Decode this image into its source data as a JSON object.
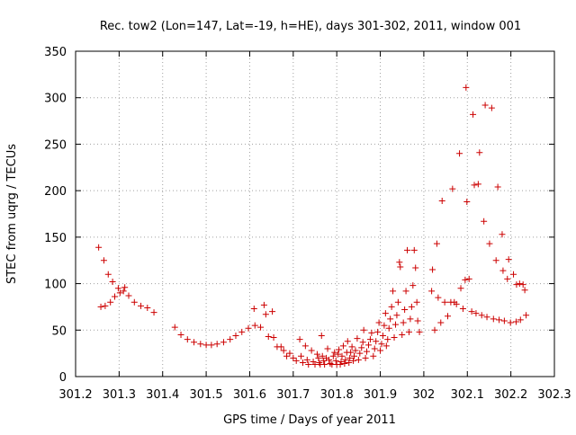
{
  "chart_data": {
    "type": "scatter",
    "title": "Rec. tow2 (Lon=147, Lat=-19, h=HE), days 301-302, 2011, window 001",
    "xlabel": "GPS time / Days of year 2011",
    "ylabel": "STEC from uqrg / TECUs",
    "xlim": [
      301.2,
      302.3
    ],
    "ylim": [
      0,
      350
    ],
    "xticks": [
      301.2,
      301.3,
      301.4,
      301.5,
      301.6,
      301.7,
      301.8,
      301.9,
      302,
      302.1,
      302.2,
      302.3
    ],
    "xtick_labels": [
      "301.2",
      "301.3",
      "301.4",
      "301.5",
      "301.6",
      "301.7",
      "301.8",
      "301.9",
      "302",
      "302.1",
      "302.2",
      "302.3"
    ],
    "yticks": [
      0,
      50,
      100,
      150,
      200,
      250,
      300,
      350
    ],
    "ytick_labels": [
      "0",
      "50",
      "100",
      "150",
      "200",
      "250",
      "300",
      "350"
    ],
    "grid": true,
    "marker": "+",
    "color": "#cc0000",
    "series": [
      {
        "points": [
          [
            301.253,
            139
          ],
          [
            301.258,
            75
          ],
          [
            301.265,
            125
          ],
          [
            301.268,
            76
          ],
          [
            301.275,
            110
          ],
          [
            301.28,
            80
          ],
          [
            301.285,
            102
          ],
          [
            301.29,
            86
          ],
          [
            301.298,
            95
          ],
          [
            301.302,
            90
          ],
          [
            301.31,
            92
          ],
          [
            301.313,
            96
          ],
          [
            301.322,
            87
          ],
          [
            301.335,
            80
          ],
          [
            301.35,
            76
          ],
          [
            301.365,
            74
          ],
          [
            301.38,
            69
          ],
          [
            301.428,
            53
          ],
          [
            301.442,
            45
          ],
          [
            301.457,
            40
          ],
          [
            301.472,
            37
          ],
          [
            301.487,
            35
          ],
          [
            301.5,
            34
          ],
          [
            301.512,
            34
          ],
          [
            301.525,
            35
          ],
          [
            301.54,
            37
          ],
          [
            301.555,
            40
          ],
          [
            301.568,
            44
          ],
          [
            301.582,
            48
          ],
          [
            301.597,
            52
          ],
          [
            301.61,
            73
          ],
          [
            301.612,
            55
          ],
          [
            301.625,
            53
          ],
          [
            301.633,
            77
          ],
          [
            301.637,
            67
          ],
          [
            301.643,
            43
          ],
          [
            301.652,
            70
          ],
          [
            301.655,
            42
          ],
          [
            301.663,
            32
          ],
          [
            301.672,
            32
          ],
          [
            301.678,
            28
          ],
          [
            301.685,
            22
          ],
          [
            301.692,
            25
          ],
          [
            301.7,
            20
          ],
          [
            301.707,
            17
          ],
          [
            301.715,
            40
          ],
          [
            301.718,
            22
          ],
          [
            301.722,
            15
          ],
          [
            301.728,
            33
          ],
          [
            301.732,
            18
          ],
          [
            301.735,
            13
          ],
          [
            301.742,
            28
          ],
          [
            301.746,
            16
          ],
          [
            301.75,
            13
          ],
          [
            301.755,
            24
          ],
          [
            301.758,
            20
          ],
          [
            301.76,
            15
          ],
          [
            301.762,
            13
          ],
          [
            301.765,
            44
          ],
          [
            301.767,
            22
          ],
          [
            301.77,
            17
          ],
          [
            301.772,
            13
          ],
          [
            301.776,
            20
          ],
          [
            301.779,
            30
          ],
          [
            301.782,
            18
          ],
          [
            301.785,
            14
          ],
          [
            301.789,
            13
          ],
          [
            301.792,
            22
          ],
          [
            301.795,
            26
          ],
          [
            301.798,
            17
          ],
          [
            301.8,
            13
          ],
          [
            301.803,
            24
          ],
          [
            301.805,
            29
          ],
          [
            301.808,
            13
          ],
          [
            301.81,
            16
          ],
          [
            301.812,
            22
          ],
          [
            301.815,
            33
          ],
          [
            301.818,
            14
          ],
          [
            301.82,
            18
          ],
          [
            301.823,
            26
          ],
          [
            301.825,
            38
          ],
          [
            301.828,
            15
          ],
          [
            301.83,
            20
          ],
          [
            301.832,
            26
          ],
          [
            301.835,
            32
          ],
          [
            301.838,
            17
          ],
          [
            301.84,
            22
          ],
          [
            301.843,
            28
          ],
          [
            301.847,
            41
          ],
          [
            301.85,
            18
          ],
          [
            301.853,
            25
          ],
          [
            301.857,
            31
          ],
          [
            301.86,
            37
          ],
          [
            301.862,
            50
          ],
          [
            301.866,
            20
          ],
          [
            301.869,
            27
          ],
          [
            301.873,
            34
          ],
          [
            301.877,
            40
          ],
          [
            301.88,
            47
          ],
          [
            301.884,
            22
          ],
          [
            301.887,
            30
          ],
          [
            301.89,
            38
          ],
          [
            301.894,
            48
          ],
          [
            301.897,
            58
          ],
          [
            301.9,
            28
          ],
          [
            301.903,
            35
          ],
          [
            301.906,
            44
          ],
          [
            301.909,
            55
          ],
          [
            301.912,
            68
          ],
          [
            301.914,
            33
          ],
          [
            301.917,
            40
          ],
          [
            301.92,
            52
          ],
          [
            301.923,
            62
          ],
          [
            301.926,
            75
          ],
          [
            301.929,
            92
          ],
          [
            301.932,
            42
          ],
          [
            301.935,
            56
          ],
          [
            301.938,
            66
          ],
          [
            301.941,
            80
          ],
          [
            301.944,
            123
          ],
          [
            301.946,
            118
          ],
          [
            301.95,
            45
          ],
          [
            301.953,
            58
          ],
          [
            301.956,
            72
          ],
          [
            301.959,
            92
          ],
          [
            301.962,
            136
          ],
          [
            301.966,
            48
          ],
          [
            301.969,
            62
          ],
          [
            301.972,
            75
          ],
          [
            301.975,
            98
          ],
          [
            301.978,
            136
          ],
          [
            301.981,
            117
          ],
          [
            301.984,
            80
          ],
          [
            301.986,
            60
          ],
          [
            301.99,
            48
          ],
          [
            302.018,
            92
          ],
          [
            302.02,
            115
          ],
          [
            302.025,
            50
          ],
          [
            302.03,
            143
          ],
          [
            302.033,
            85
          ],
          [
            302.039,
            58
          ],
          [
            302.042,
            189
          ],
          [
            302.048,
            80
          ],
          [
            302.055,
            65
          ],
          [
            302.062,
            80
          ],
          [
            302.066,
            202
          ],
          [
            302.07,
            80
          ],
          [
            302.075,
            78
          ],
          [
            302.082,
            240
          ],
          [
            302.085,
            95
          ],
          [
            302.09,
            73
          ],
          [
            302.095,
            104
          ],
          [
            302.097,
            311
          ],
          [
            302.099,
            188
          ],
          [
            302.104,
            105
          ],
          [
            302.11,
            70
          ],
          [
            302.113,
            282
          ],
          [
            302.116,
            206
          ],
          [
            302.12,
            68
          ],
          [
            302.125,
            207
          ],
          [
            302.128,
            241
          ],
          [
            302.133,
            66
          ],
          [
            302.138,
            167
          ],
          [
            302.141,
            292
          ],
          [
            302.145,
            64
          ],
          [
            302.151,
            143
          ],
          [
            302.156,
            289
          ],
          [
            302.16,
            62
          ],
          [
            302.166,
            125
          ],
          [
            302.17,
            204
          ],
          [
            302.173,
            61
          ],
          [
            302.18,
            153
          ],
          [
            302.182,
            114
          ],
          [
            302.185,
            60
          ],
          [
            302.192,
            105
          ],
          [
            302.195,
            126
          ],
          [
            302.199,
            58
          ],
          [
            302.206,
            110
          ],
          [
            302.212,
            59
          ],
          [
            302.213,
            99
          ],
          [
            302.22,
            100
          ],
          [
            302.222,
            61
          ],
          [
            302.228,
            99
          ],
          [
            302.232,
            93
          ],
          [
            302.235,
            66
          ]
        ]
      }
    ]
  }
}
